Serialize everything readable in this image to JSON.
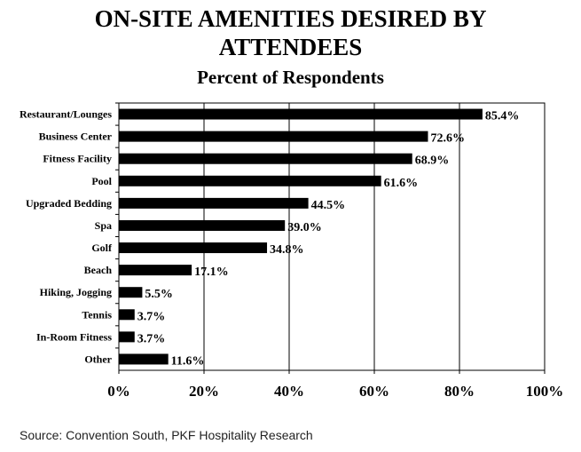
{
  "header": {
    "title_line1": "ON-SITE AMENITIES DESIRED BY",
    "title_line2": "ATTENDEES",
    "subtitle": "Percent of Respondents"
  },
  "footer": {
    "source": "Source: Convention South, PKF Hospitality Research"
  },
  "chart_data": {
    "type": "bar",
    "orientation": "horizontal",
    "title": "ON-SITE AMENITIES DESIRED BY ATTENDEES",
    "subtitle": "Percent of Respondents",
    "categories": [
      "Restaurant/Lounges",
      "Business Center",
      "Fitness Facility",
      "Pool",
      "Upgraded Bedding",
      "Spa",
      "Golf",
      "Beach",
      "Hiking, Jogging",
      "Tennis",
      "In-Room Fitness",
      "Other"
    ],
    "values": [
      85.4,
      72.6,
      68.9,
      61.6,
      44.5,
      39.0,
      34.8,
      17.1,
      5.5,
      3.7,
      3.7,
      11.6
    ],
    "data_labels": [
      "85.4%",
      "72.6%",
      "68.9%",
      "61.6%",
      "44.5%",
      "39.0%",
      "34.8%",
      "17.1%",
      "5.5%",
      "3.7%",
      "3.7%",
      "11.6%"
    ],
    "x_ticks": [
      "0%",
      "20%",
      "40%",
      "60%",
      "80%",
      "100%"
    ],
    "xlim": [
      0,
      100
    ],
    "xlabel": "",
    "ylabel": "",
    "grid": true,
    "bar_color": "#000000"
  }
}
